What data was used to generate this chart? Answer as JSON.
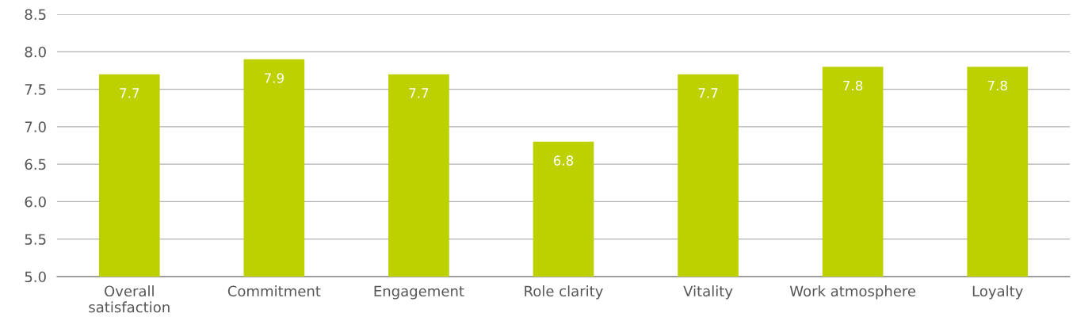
{
  "chart_data": {
    "type": "bar",
    "categories": [
      "Overall\nsatisfaction",
      "Commitment",
      "Engagement",
      "Role clarity",
      "Vitality",
      "Work atmosphere",
      "Loyalty"
    ],
    "values": [
      7.7,
      7.9,
      7.7,
      6.8,
      7.7,
      7.8,
      7.8
    ],
    "color": "#bdd000",
    "ylim": [
      5.0,
      8.5
    ],
    "yticks": [
      {
        "value": 5.0,
        "label": "5.0"
      },
      {
        "value": 5.5,
        "label": "5.5"
      },
      {
        "value": 6.0,
        "label": "6.0"
      },
      {
        "value": 6.5,
        "label": "6.5"
      },
      {
        "value": 7.0,
        "label": "7.0"
      },
      {
        "value": 7.5,
        "label": "7.5"
      },
      {
        "value": 8.0,
        "label": "8.0"
      },
      {
        "value": 8.5,
        "label": "8.5"
      }
    ],
    "grid": "y",
    "data_labels": true
  }
}
